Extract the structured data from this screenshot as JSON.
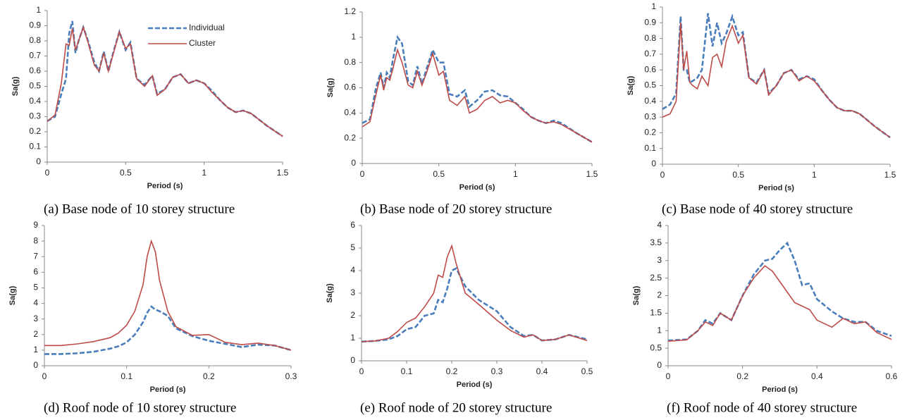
{
  "chart_data": [
    {
      "type": "line",
      "caption": "(a) Base node of 10 storey structure",
      "x_label": "Period (s)",
      "y_label": "Sa(g)",
      "x": [
        0,
        0.05,
        0.09,
        0.12,
        0.14,
        0.16,
        0.18,
        0.2,
        0.23,
        0.26,
        0.3,
        0.33,
        0.36,
        0.39,
        0.42,
        0.46,
        0.5,
        0.53,
        0.57,
        0.62,
        0.67,
        0.7,
        0.75,
        0.8,
        0.85,
        0.9,
        0.95,
        1.0,
        1.05,
        1.1,
        1.15,
        1.2,
        1.25,
        1.3,
        1.4,
        1.5
      ],
      "series": [
        {
          "name": "Individual",
          "color": "#4a7ebb",
          "style": "dashed",
          "values": [
            0.27,
            0.3,
            0.45,
            0.55,
            0.85,
            0.93,
            0.72,
            0.8,
            0.89,
            0.8,
            0.66,
            0.6,
            0.73,
            0.6,
            0.72,
            0.86,
            0.74,
            0.79,
            0.55,
            0.51,
            0.57,
            0.45,
            0.48,
            0.56,
            0.58,
            0.52,
            0.54,
            0.52,
            0.47,
            0.41,
            0.36,
            0.33,
            0.34,
            0.32,
            0.24,
            0.17
          ]
        },
        {
          "name": "Cluster",
          "color": "#be4b48",
          "style": "solid",
          "values": [
            0.27,
            0.31,
            0.52,
            0.78,
            0.77,
            0.88,
            0.74,
            0.8,
            0.89,
            0.79,
            0.64,
            0.6,
            0.72,
            0.6,
            0.71,
            0.86,
            0.75,
            0.78,
            0.55,
            0.5,
            0.57,
            0.44,
            0.48,
            0.56,
            0.58,
            0.52,
            0.54,
            0.52,
            0.46,
            0.41,
            0.36,
            0.33,
            0.34,
            0.32,
            0.24,
            0.17
          ]
        }
      ],
      "xlim": [
        0,
        1.5
      ],
      "xticks": [
        0,
        0.5,
        1,
        1.5
      ],
      "ylim": [
        0,
        1
      ],
      "yticks": [
        0,
        0.1,
        0.2,
        0.3,
        0.4,
        0.5,
        0.6,
        0.7,
        0.8,
        0.9,
        1
      ],
      "legend": "top"
    },
    {
      "type": "line",
      "caption": "(b) Base node of 20 storey structure",
      "x_label": "Period (s)",
      "y_label": "Sa(g)",
      "x": [
        0,
        0.05,
        0.09,
        0.12,
        0.14,
        0.16,
        0.18,
        0.2,
        0.23,
        0.26,
        0.3,
        0.33,
        0.36,
        0.39,
        0.42,
        0.46,
        0.5,
        0.53,
        0.57,
        0.62,
        0.67,
        0.7,
        0.75,
        0.8,
        0.85,
        0.9,
        0.95,
        1.0,
        1.05,
        1.1,
        1.15,
        1.2,
        1.25,
        1.3,
        1.4,
        1.5
      ],
      "series": [
        {
          "name": "Individual",
          "color": "#4a7ebb",
          "style": "dashed",
          "values": [
            0.32,
            0.35,
            0.6,
            0.72,
            0.6,
            0.72,
            0.68,
            0.82,
            1.0,
            0.95,
            0.65,
            0.62,
            0.77,
            0.63,
            0.75,
            0.9,
            0.8,
            0.8,
            0.55,
            0.53,
            0.58,
            0.45,
            0.5,
            0.57,
            0.58,
            0.54,
            0.53,
            0.48,
            0.43,
            0.37,
            0.34,
            0.32,
            0.34,
            0.32,
            0.24,
            0.17
          ]
        },
        {
          "name": "Cluster",
          "color": "#be4b48",
          "style": "solid",
          "values": [
            0.29,
            0.33,
            0.55,
            0.7,
            0.58,
            0.68,
            0.66,
            0.75,
            0.9,
            0.8,
            0.62,
            0.6,
            0.73,
            0.62,
            0.72,
            0.87,
            0.7,
            0.73,
            0.5,
            0.46,
            0.53,
            0.4,
            0.43,
            0.5,
            0.53,
            0.48,
            0.5,
            0.48,
            0.42,
            0.37,
            0.34,
            0.32,
            0.33,
            0.31,
            0.24,
            0.17
          ]
        }
      ],
      "xlim": [
        0,
        1.5
      ],
      "xticks": [
        0,
        0.5,
        1,
        1.5
      ],
      "ylim": [
        0,
        1.2
      ],
      "yticks": [
        0,
        0.2,
        0.4,
        0.6,
        0.8,
        1,
        1.2
      ]
    },
    {
      "type": "line",
      "caption": "(c) Base node of 40 storey structure",
      "x_label": "Period (s)",
      "y_label": "Sa(g)",
      "x": [
        0,
        0.05,
        0.09,
        0.12,
        0.14,
        0.16,
        0.18,
        0.2,
        0.23,
        0.26,
        0.3,
        0.33,
        0.36,
        0.39,
        0.42,
        0.46,
        0.5,
        0.53,
        0.57,
        0.62,
        0.67,
        0.7,
        0.75,
        0.8,
        0.85,
        0.9,
        0.95,
        1.0,
        1.05,
        1.1,
        1.15,
        1.2,
        1.25,
        1.3,
        1.4,
        1.5
      ],
      "series": [
        {
          "name": "Individual",
          "color": "#4a7ebb",
          "style": "dashed",
          "values": [
            0.35,
            0.38,
            0.45,
            0.94,
            0.6,
            0.6,
            0.52,
            0.53,
            0.55,
            0.6,
            0.96,
            0.75,
            0.9,
            0.77,
            0.83,
            0.94,
            0.82,
            0.84,
            0.55,
            0.52,
            0.6,
            0.45,
            0.5,
            0.58,
            0.6,
            0.54,
            0.56,
            0.54,
            0.47,
            0.41,
            0.36,
            0.34,
            0.34,
            0.32,
            0.24,
            0.17
          ]
        },
        {
          "name": "Cluster",
          "color": "#be4b48",
          "style": "solid",
          "values": [
            0.3,
            0.32,
            0.4,
            0.9,
            0.6,
            0.72,
            0.52,
            0.5,
            0.48,
            0.56,
            0.5,
            0.68,
            0.7,
            0.62,
            0.78,
            0.88,
            0.77,
            0.82,
            0.55,
            0.51,
            0.6,
            0.44,
            0.5,
            0.58,
            0.6,
            0.53,
            0.56,
            0.53,
            0.47,
            0.41,
            0.36,
            0.34,
            0.34,
            0.32,
            0.24,
            0.17
          ]
        }
      ],
      "xlim": [
        0,
        1.5
      ],
      "xticks": [
        0,
        0.5,
        1,
        1.5
      ],
      "ylim": [
        0,
        1
      ],
      "yticks": [
        0,
        0.1,
        0.2,
        0.3,
        0.4,
        0.5,
        0.6,
        0.7,
        0.8,
        0.9,
        1
      ]
    },
    {
      "type": "line",
      "caption": "(d) Roof node of 10 storey structure",
      "x_label": "Period (s)",
      "y_label": "Sa(g)",
      "x": [
        0,
        0.02,
        0.04,
        0.06,
        0.08,
        0.09,
        0.1,
        0.11,
        0.12,
        0.125,
        0.13,
        0.135,
        0.14,
        0.15,
        0.16,
        0.18,
        0.2,
        0.22,
        0.24,
        0.26,
        0.28,
        0.3
      ],
      "series": [
        {
          "name": "Individual",
          "color": "#4a7ebb",
          "style": "dashed",
          "values": [
            0.75,
            0.75,
            0.8,
            0.9,
            1.1,
            1.25,
            1.5,
            2.0,
            2.8,
            3.4,
            3.8,
            3.6,
            3.5,
            3.2,
            2.4,
            1.9,
            1.6,
            1.4,
            1.2,
            1.35,
            1.3,
            1.0
          ]
        },
        {
          "name": "Cluster",
          "color": "#be4b48",
          "style": "solid",
          "values": [
            1.3,
            1.3,
            1.4,
            1.55,
            1.8,
            2.1,
            2.6,
            3.5,
            5.2,
            7.0,
            8.0,
            7.3,
            5.5,
            3.5,
            2.5,
            1.95,
            2.0,
            1.5,
            1.35,
            1.45,
            1.3,
            1.0
          ]
        }
      ],
      "xlim": [
        0,
        0.3
      ],
      "xticks": [
        0,
        0.1,
        0.2,
        0.3
      ],
      "ylim": [
        0,
        9
      ],
      "yticks": [
        0,
        1,
        2,
        3,
        4,
        5,
        6,
        7,
        8,
        9
      ]
    },
    {
      "type": "line",
      "caption": "(e) Roof node of 20 storey structure",
      "x_label": "Period (s)",
      "y_label": "Sa(g)",
      "x": [
        0,
        0.03,
        0.06,
        0.08,
        0.1,
        0.12,
        0.14,
        0.16,
        0.17,
        0.18,
        0.19,
        0.2,
        0.21,
        0.23,
        0.26,
        0.3,
        0.33,
        0.36,
        0.38,
        0.4,
        0.43,
        0.46,
        0.5
      ],
      "series": [
        {
          "name": "Individual",
          "color": "#4a7ebb",
          "style": "dashed",
          "values": [
            0.85,
            0.88,
            0.95,
            1.1,
            1.4,
            1.5,
            2.0,
            2.1,
            2.7,
            2.6,
            3.2,
            4.0,
            4.1,
            3.3,
            2.7,
            2.2,
            1.5,
            1.1,
            1.15,
            0.9,
            0.95,
            1.15,
            0.95
          ]
        },
        {
          "name": "Cluster",
          "color": "#be4b48",
          "style": "solid",
          "values": [
            0.85,
            0.88,
            1.0,
            1.3,
            1.7,
            1.9,
            2.4,
            3.0,
            3.8,
            3.7,
            4.6,
            5.1,
            4.3,
            3.0,
            2.5,
            1.8,
            1.35,
            1.05,
            1.15,
            0.9,
            0.95,
            1.15,
            0.9
          ]
        }
      ],
      "xlim": [
        0,
        0.5
      ],
      "xticks": [
        0,
        0.1,
        0.2,
        0.3,
        0.4,
        0.5
      ],
      "ylim": [
        0,
        6
      ],
      "yticks": [
        0,
        1,
        2,
        3,
        4,
        5,
        6
      ]
    },
    {
      "type": "line",
      "caption": "(f) Roof node of 40 storey structure",
      "x_label": "Period (s)",
      "y_label": "Sa(g)",
      "x": [
        0,
        0.05,
        0.08,
        0.1,
        0.12,
        0.14,
        0.17,
        0.2,
        0.23,
        0.26,
        0.28,
        0.3,
        0.32,
        0.34,
        0.36,
        0.38,
        0.4,
        0.44,
        0.47,
        0.5,
        0.53,
        0.56,
        0.6
      ],
      "series": [
        {
          "name": "Individual",
          "color": "#4a7ebb",
          "style": "dashed",
          "values": [
            0.72,
            0.75,
            1.0,
            1.3,
            1.2,
            1.5,
            1.3,
            2.0,
            2.6,
            3.0,
            3.05,
            3.3,
            3.5,
            3.0,
            2.3,
            2.35,
            1.9,
            1.55,
            1.35,
            1.25,
            1.25,
            1.0,
            0.85
          ]
        },
        {
          "name": "Cluster",
          "color": "#be4b48",
          "style": "solid",
          "values": [
            0.7,
            0.74,
            1.0,
            1.25,
            1.15,
            1.5,
            1.3,
            2.0,
            2.5,
            2.85,
            2.7,
            2.4,
            2.1,
            1.8,
            1.7,
            1.6,
            1.3,
            1.1,
            1.35,
            1.2,
            1.25,
            0.95,
            0.75
          ]
        }
      ],
      "xlim": [
        0,
        0.6
      ],
      "xticks": [
        0,
        0.2,
        0.4,
        0.6
      ],
      "ylim": [
        0,
        4
      ],
      "yticks": [
        0,
        0.5,
        1,
        1.5,
        2,
        2.5,
        3,
        3.5,
        4
      ]
    }
  ]
}
